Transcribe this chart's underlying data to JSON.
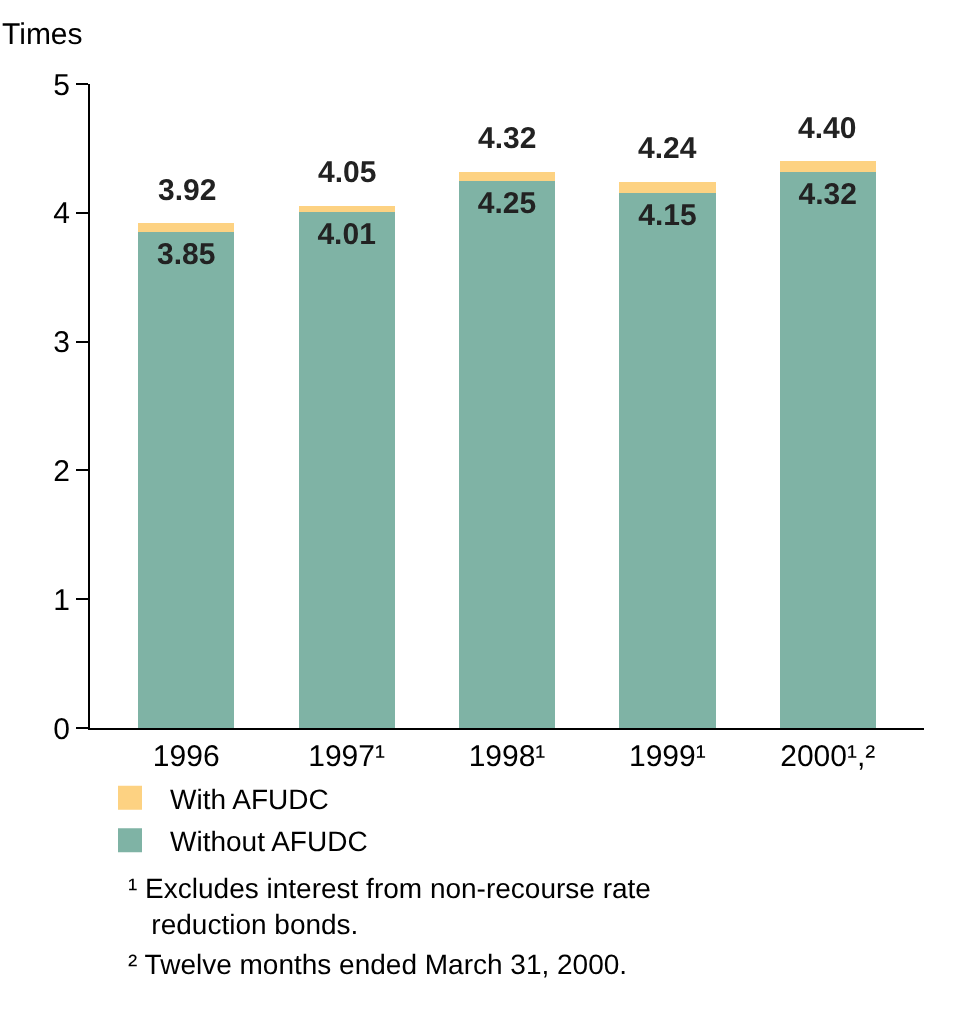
{
  "chart_data": {
    "type": "bar",
    "stacked": true,
    "ylabel": "Times",
    "categories": [
      "1996",
      "1997¹",
      "1998¹",
      "1999¹",
      "2000¹,²"
    ],
    "series": [
      {
        "name": "Without AFUDC",
        "color": "#7fb3a5",
        "values": [
          3.85,
          4.01,
          4.25,
          4.15,
          4.32
        ],
        "value_labels": [
          "3.85",
          "4.01",
          "4.25",
          "4.15",
          "4.32"
        ]
      },
      {
        "name": "With AFUDC",
        "color": "#fdd282",
        "values": [
          0.07,
          0.04,
          0.07,
          0.09,
          0.08
        ]
      }
    ],
    "totals": [
      "3.92",
      "4.05",
      "4.32",
      "4.24",
      "4.40"
    ],
    "ylim": [
      0,
      5
    ],
    "yticks": [
      0,
      1,
      2,
      3,
      4,
      5
    ],
    "legend": "bottom left",
    "annotations": [
      "¹ Excludes interest from non-recourse rate reduction bonds.",
      "² Twelve months ended March 31, 2000."
    ]
  }
}
